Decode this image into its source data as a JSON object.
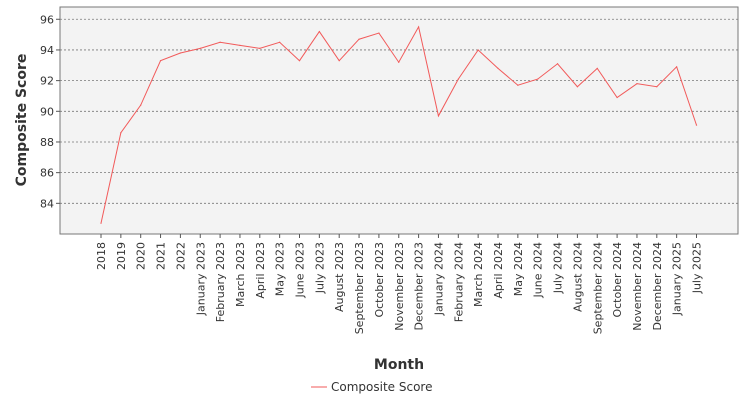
{
  "chart_data": {
    "type": "line",
    "title": "",
    "xlabel": "Month",
    "ylabel": "Composite Score",
    "ylim": [
      82.0,
      96.8
    ],
    "yticks": [
      84,
      86,
      88,
      90,
      92,
      94,
      96
    ],
    "grid": true,
    "legend_position": "bottom",
    "categories": [
      "2018",
      "2019",
      "2020",
      "2021",
      "2022",
      "January 2023",
      "February 2023",
      "March 2023",
      "April 2023",
      "May 2023",
      "June 2023",
      "July 2023",
      "August 2023",
      "September 2023",
      "October 2023",
      "November 2023",
      "December 2023",
      "January 2024",
      "February 2024",
      "March 2024",
      "April 2024",
      "May 2024",
      "June 2024",
      "July 2024",
      "August 2024",
      "September 2024",
      "October 2024",
      "November 2024",
      "December 2024",
      "January 2025",
      "July 2025"
    ],
    "series": [
      {
        "name": "Composite Score",
        "color": "#f25a5a",
        "values": [
          82.7,
          88.6,
          90.4,
          93.3,
          93.8,
          94.1,
          94.5,
          94.3,
          94.1,
          94.5,
          93.3,
          95.2,
          93.3,
          94.7,
          95.1,
          93.2,
          95.5,
          89.7,
          92.1,
          94.0,
          92.8,
          91.7,
          92.1,
          93.1,
          91.6,
          92.8,
          90.9,
          91.8,
          91.6,
          92.9,
          89.1
        ]
      }
    ]
  },
  "colors": {
    "plot_background": "#f3f3f3",
    "gridline": "#777777",
    "axis": "#555555"
  }
}
